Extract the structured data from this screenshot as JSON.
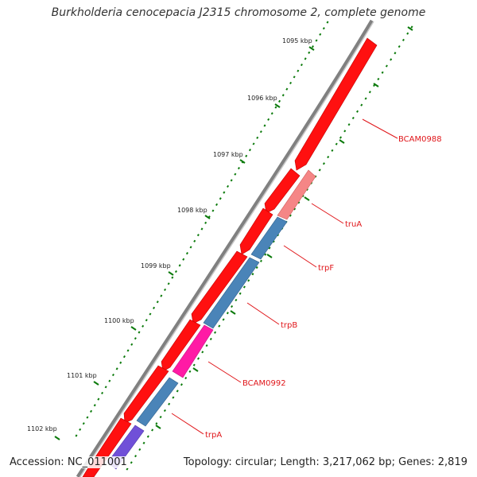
{
  "title": "Burkholderia cenocepacia J2315 chromosome 2, complete genome",
  "accession": "Accession: NC_011001",
  "info": "Topology: circular; Length: 3,217,062 bp; Genes: 2,819",
  "colors": {
    "backbone": "#808080",
    "tick": "#0b7a0b",
    "label_line": "#e0161a",
    "label_text": "#e0161a",
    "kbp_text": "#222222",
    "cds_red": "#ff1414",
    "gene_blue": "#4a84b8",
    "gene_salmon": "#f58686",
    "gene_magenta": "#ff1aa5",
    "gene_purple": "#7050d8"
  },
  "kbp_labels": [
    "1095 kbp",
    "1096 kbp",
    "1097 kbp",
    "1098 kbp",
    "1099 kbp",
    "1100 kbp",
    "1101 kbp",
    "1102 kbp"
  ],
  "genes": [
    {
      "name": "BCAM0988",
      "track": "outer",
      "color": "cds_red",
      "labeled": true
    },
    {
      "name": "truA",
      "track": "inner",
      "color": "gene_salmon",
      "labeled": true
    },
    {
      "name": "trpF",
      "track": "inner",
      "color": "gene_blue",
      "labeled": true
    },
    {
      "name": "trpB",
      "track": "inner",
      "color": "gene_blue",
      "labeled": true
    },
    {
      "name": "BCAM0992",
      "track": "inner",
      "color": "gene_magenta",
      "labeled": true
    },
    {
      "name": "trpA",
      "track": "inner",
      "color": "gene_blue",
      "labeled": true
    },
    {
      "name": "",
      "track": "inner",
      "color": "gene_purple",
      "labeled": false
    }
  ]
}
